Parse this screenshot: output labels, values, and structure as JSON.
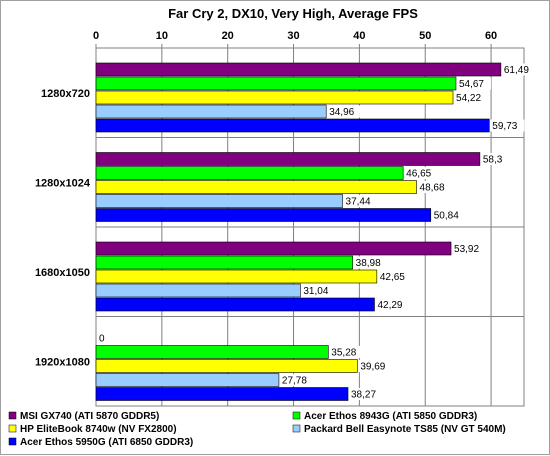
{
  "chart_data": {
    "type": "bar",
    "orientation": "horizontal",
    "title": "Far Cry 2, DX10, Very High, Average FPS",
    "xlim": [
      0,
      65
    ],
    "x_ticks": [
      0,
      10,
      20,
      30,
      40,
      50,
      60
    ],
    "tick_labels": [
      "0",
      "10",
      "20",
      "30",
      "40",
      "50",
      "60"
    ],
    "grid": true,
    "legend_position": "bottom",
    "categories": [
      "1280x720",
      "1280x1024",
      "1680x1050",
      "1920x1080"
    ],
    "series": [
      {
        "name": "MSI GX740 (ATI 5870 GDDR5)",
        "color": "#800080",
        "values": [
          61.49,
          58.3,
          53.92,
          0
        ],
        "labels": [
          "61,49",
          "58,3",
          "53,92",
          "0"
        ]
      },
      {
        "name": "Acer Ethos 8943G (ATI 5850 GDDR3)",
        "color": "#00ff00",
        "values": [
          54.67,
          46.65,
          38.98,
          35.28
        ],
        "labels": [
          "54,67",
          "46,65",
          "38,98",
          "35,28"
        ]
      },
      {
        "name": "HP EliteBook 8740w (NV FX2800)",
        "color": "#ffff00",
        "values": [
          54.22,
          48.68,
          42.65,
          39.69
        ],
        "labels": [
          "54,22",
          "48,68",
          "42,65",
          "39,69"
        ]
      },
      {
        "name": "Packard Bell Easynote TS85 (NV GT 540M)",
        "color": "#99ccff",
        "values": [
          34.96,
          37.44,
          31.04,
          27.78
        ],
        "labels": [
          "34,96",
          "37,44",
          "31,04",
          "27,78"
        ]
      },
      {
        "name": "Acer Ethos 5950G (ATI 6850 GDDR3)",
        "color": "#0000ff",
        "values": [
          59.73,
          50.84,
          42.29,
          38.27
        ],
        "labels": [
          "59,73",
          "50,84",
          "42,29",
          "38,27"
        ]
      }
    ]
  }
}
